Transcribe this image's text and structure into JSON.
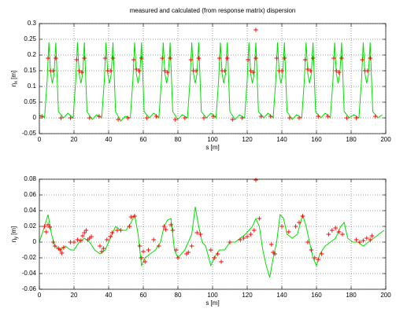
{
  "chart_data": [
    {
      "type": "line",
      "title": "measured and calculated (from response matrix) dispersion",
      "xlabel": "s [m]",
      "ylabel": {
        "symbol": "η",
        "subscript": "x",
        "unit": "[m]"
      },
      "xlim": [
        0,
        200
      ],
      "xticks": [
        0,
        20,
        40,
        60,
        80,
        100,
        120,
        140,
        160,
        180,
        200
      ],
      "ylim": [
        -0.05,
        0.3
      ],
      "yticks": [
        -0.05,
        0,
        0.05,
        0.1,
        0.15,
        0.2,
        0.25,
        0.3
      ],
      "grid": true,
      "series": [
        {
          "mode": "line",
          "color": "#00e000",
          "x": [
            0,
            3,
            4.5,
            5.5,
            6.5,
            7.5,
            8.5,
            9.5,
            11,
            14,
            16.5,
            19.5,
            21,
            22,
            23,
            24,
            25,
            26,
            27.5,
            30.5,
            33,
            36,
            37.5,
            38.5,
            39.5,
            40.5,
            41.5,
            42.5,
            44,
            47,
            49.5,
            52.5,
            54,
            55,
            56,
            57,
            58,
            59,
            60.5,
            63.5,
            66,
            69,
            70.5,
            71.5,
            72.5,
            73.5,
            74.5,
            75.5,
            77,
            80,
            82.5,
            85.5,
            87,
            88,
            89,
            90,
            91,
            92,
            93.5,
            96.5,
            99,
            102,
            103.5,
            104.5,
            105.5,
            106.5,
            107.5,
            108.5,
            110,
            113,
            115.5,
            118.5,
            120,
            121,
            122,
            123,
            124,
            125,
            126.5,
            129.5,
            132,
            135,
            136.5,
            137.5,
            138.5,
            139.5,
            140.5,
            141.5,
            143,
            146,
            148.5,
            151.5,
            153,
            154,
            155,
            156,
            157,
            158,
            159.5,
            162.5,
            165,
            168,
            169.5,
            170.5,
            171.5,
            172.5,
            173.5,
            174.5,
            176,
            179,
            181.5,
            184.5,
            186,
            187,
            188,
            189,
            190,
            191,
            192.5,
            195.5,
            198
          ],
          "values": [
            0.01,
            0.0,
            0.12,
            0.24,
            0.14,
            0.11,
            0.14,
            0.24,
            0.02,
            0.0,
            0.015,
            0.0,
            0.12,
            0.24,
            0.14,
            0.11,
            0.14,
            0.24,
            0.02,
            -0.005,
            0.01,
            0.0,
            0.12,
            0.24,
            0.14,
            0.11,
            0.14,
            0.24,
            0.02,
            -0.01,
            0.005,
            0.0,
            0.12,
            0.24,
            0.14,
            0.11,
            0.14,
            0.24,
            0.02,
            0.0,
            0.015,
            0.0,
            0.12,
            0.24,
            0.14,
            0.11,
            0.14,
            0.24,
            0.02,
            -0.005,
            0.01,
            0.0,
            0.12,
            0.24,
            0.14,
            0.11,
            0.14,
            0.24,
            0.02,
            0.0,
            0.015,
            0.0,
            0.12,
            0.24,
            0.14,
            0.11,
            0.14,
            0.24,
            0.02,
            -0.005,
            0.01,
            0.0,
            0.12,
            0.24,
            0.14,
            0.11,
            0.14,
            0.24,
            0.02,
            0.0,
            0.015,
            0.0,
            0.12,
            0.24,
            0.14,
            0.11,
            0.14,
            0.24,
            0.02,
            -0.005,
            0.01,
            0.0,
            0.12,
            0.24,
            0.14,
            0.11,
            0.14,
            0.24,
            0.02,
            0.0,
            0.015,
            0.0,
            0.12,
            0.24,
            0.14,
            0.11,
            0.14,
            0.24,
            0.02,
            0.0,
            0.01,
            0.0,
            0.12,
            0.24,
            0.14,
            0.11,
            0.14,
            0.24,
            0.02,
            0.0,
            0.01
          ]
        },
        {
          "mode": "markers",
          "color": "#ff0000",
          "x": [
            1.5,
            5,
            6.5,
            8,
            9.5,
            12.5,
            18,
            21.5,
            23,
            24.5,
            26,
            29,
            34.5,
            38,
            39.5,
            41,
            42.5,
            45.5,
            51,
            54.5,
            56,
            57.5,
            59,
            62,
            67.5,
            71,
            72.5,
            74,
            75.5,
            78.5,
            84,
            87.5,
            89,
            90.5,
            92,
            95,
            100.5,
            104,
            105.5,
            107,
            108.5,
            111.5,
            117,
            120.5,
            122,
            123.5,
            125,
            128,
            133.5,
            137,
            138.5,
            140,
            141.5,
            144.5,
            150,
            153.5,
            155,
            156.5,
            158,
            161,
            166.5,
            170,
            171.5,
            173,
            174.5,
            177.5,
            183,
            186.5,
            188,
            189.5,
            191,
            194,
            125
          ],
          "values": [
            0.005,
            0.19,
            0.15,
            0.15,
            0.19,
            0.0,
            0.0,
            0.185,
            0.15,
            0.145,
            0.19,
            0.0,
            0.005,
            0.19,
            0.15,
            0.15,
            0.19,
            -0.005,
            0.0,
            0.185,
            0.155,
            0.15,
            0.19,
            0.0,
            0.005,
            0.19,
            0.15,
            0.145,
            0.19,
            -0.005,
            0.0,
            0.185,
            0.15,
            0.15,
            0.19,
            0.0,
            0.005,
            0.19,
            0.15,
            0.15,
            0.19,
            -0.005,
            0.0,
            0.185,
            0.15,
            0.145,
            0.19,
            0.005,
            0.005,
            0.19,
            0.15,
            0.15,
            0.19,
            0.0,
            0.0,
            0.185,
            0.155,
            0.15,
            0.19,
            0.005,
            0.005,
            0.19,
            0.15,
            0.145,
            0.19,
            0.0,
            0.0,
            0.185,
            0.15,
            0.15,
            0.19,
            0.005,
            0.28
          ]
        }
      ]
    },
    {
      "type": "line",
      "xlabel": "s [m]",
      "ylabel": {
        "symbol": "η",
        "subscript": "y",
        "unit": "[m]"
      },
      "xlim": [
        0,
        200
      ],
      "xticks": [
        0,
        20,
        40,
        60,
        80,
        100,
        120,
        140,
        160,
        180,
        200
      ],
      "ylim": [
        -0.06,
        0.08
      ],
      "yticks": [
        -0.06,
        -0.04,
        -0.02,
        0,
        0.02,
        0.04,
        0.06,
        0.08
      ],
      "grid": true,
      "series": [
        {
          "mode": "line",
          "color": "#00e000",
          "x": [
            0,
            3,
            5,
            7,
            9,
            12,
            15,
            18,
            20,
            23,
            26,
            29,
            32,
            35,
            38,
            41,
            44,
            47,
            50,
            53,
            55,
            57,
            59,
            61,
            64,
            67,
            70,
            72,
            74,
            76,
            78,
            80,
            82,
            84,
            86,
            88,
            90,
            92,
            94,
            96,
            99,
            101,
            104,
            107,
            110,
            113,
            116,
            119,
            121,
            123,
            125,
            127,
            129,
            131,
            133,
            135,
            137,
            139,
            141,
            143,
            146,
            149,
            152,
            154,
            156,
            158,
            160,
            162,
            165,
            168,
            171,
            174,
            176,
            178,
            181,
            184,
            187,
            190,
            193,
            196,
            199
          ],
          "values": [
            0.0,
            0.02,
            0.035,
            0.01,
            -0.005,
            -0.01,
            -0.005,
            -0.01,
            -0.01,
            0.0,
            0.005,
            0.0,
            -0.01,
            -0.015,
            -0.01,
            0.005,
            0.02,
            0.015,
            0.015,
            0.025,
            0.035,
            0.01,
            -0.03,
            -0.02,
            -0.015,
            -0.01,
            0.0,
            0.02,
            0.028,
            0.03,
            -0.01,
            -0.02,
            -0.015,
            -0.01,
            0.0,
            0.01,
            0.045,
            0.02,
            0.0,
            -0.005,
            -0.03,
            -0.02,
            -0.01,
            -0.01,
            0.0,
            0.0,
            0.005,
            0.01,
            0.015,
            0.02,
            0.03,
            0.02,
            -0.01,
            -0.03,
            -0.045,
            -0.02,
            0.0,
            0.035,
            0.03,
            0.01,
            0.005,
            0.01,
            0.035,
            0.02,
            0.0,
            -0.02,
            -0.03,
            -0.015,
            -0.005,
            0.0,
            0.005,
            0.02,
            0.025,
            0.005,
            0.0,
            0.0,
            -0.005,
            0.0,
            0.005,
            0.01,
            0.015
          ]
        },
        {
          "mode": "markers",
          "color": "#ff0000",
          "x": [
            3,
            4,
            5,
            6,
            8,
            9,
            11,
            12,
            13,
            14,
            18,
            20,
            22,
            24,
            25,
            26,
            27,
            28,
            29,
            30,
            35,
            36,
            37,
            39,
            41,
            42,
            45,
            47,
            52,
            53,
            55,
            58,
            59,
            60,
            61,
            63,
            66,
            69,
            72,
            73,
            76,
            77,
            79,
            80,
            85,
            86,
            88,
            91,
            93,
            99,
            101,
            103,
            105,
            110,
            116,
            118,
            120,
            122,
            124,
            125,
            127,
            134,
            135,
            136,
            140,
            144,
            148,
            150,
            152,
            155,
            157,
            159,
            161,
            163,
            167,
            169,
            171,
            173,
            175,
            183,
            185,
            187,
            189,
            191,
            192
          ],
          "values": [
            0.02,
            0.013,
            0.022,
            0.019,
            0.0,
            -0.005,
            -0.008,
            -0.01,
            -0.014,
            -0.007,
            0.0,
            0.0,
            0.003,
            0.002,
            0.008,
            0.012,
            0.015,
            0.003,
            0.005,
            0.007,
            -0.005,
            -0.012,
            -0.008,
            0.003,
            0.007,
            0.012,
            0.015,
            0.015,
            0.02,
            0.032,
            0.033,
            -0.005,
            -0.02,
            -0.012,
            -0.025,
            -0.01,
            0.003,
            -0.005,
            0.02,
            0.016,
            0.022,
            0.015,
            -0.01,
            -0.02,
            -0.015,
            -0.013,
            -0.005,
            0.012,
            0.01,
            -0.01,
            -0.02,
            -0.015,
            -0.025,
            0.0,
            0.003,
            0.005,
            0.007,
            0.01,
            0.015,
            0.079,
            0.03,
            -0.003,
            -0.013,
            -0.015,
            0.02,
            0.013,
            0.02,
            0.025,
            0.033,
            0.0,
            -0.01,
            -0.02,
            -0.022,
            -0.015,
            0.01,
            0.015,
            0.018,
            0.013,
            0.01,
            0.003,
            0.0,
            0.002,
            0.005,
            0.003,
            0.008
          ]
        }
      ]
    }
  ]
}
